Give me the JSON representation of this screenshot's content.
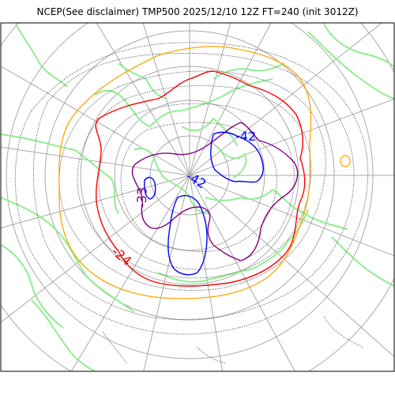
{
  "title": "NCEP(See disclaimer) TMP500 2025/12/10 12Z FT=240 (init 3012Z)",
  "map": {
    "projection": "polar-stereographic-north",
    "variable": "TMP500",
    "colors": {
      "coastline": "#90ee90",
      "graticule": "#a9a9a9",
      "minor_isotherm": "#505050",
      "iso_-24": "#ff0000",
      "iso_-33": "#800080",
      "iso_-42": "#0000ff",
      "iso_-15": "#ffa500",
      "frame": "#000000"
    },
    "contour_labels": [
      {
        "text": "-42",
        "color": "#0000ff"
      },
      {
        "text": "-42",
        "color": "#0000ff"
      },
      {
        "text": "-33",
        "color": "#800080"
      },
      {
        "text": "-24",
        "color": "#ff0000"
      }
    ]
  }
}
